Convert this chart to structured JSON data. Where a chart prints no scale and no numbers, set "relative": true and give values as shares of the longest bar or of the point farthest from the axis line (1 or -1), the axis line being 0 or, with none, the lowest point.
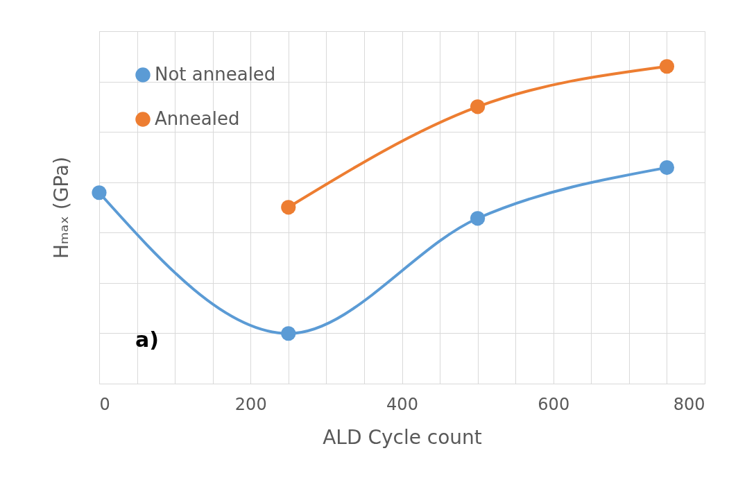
{
  "chart_data": {
    "type": "line",
    "relative": true,
    "xlabel": "ALD Cycle count",
    "ylabel": "Hₘₐₓ (GPa)",
    "xlim": [
      0,
      800
    ],
    "xticks": [
      0,
      {
        "value": 50,
        "label": null
      },
      {
        "value": 100,
        "label": null
      },
      {
        "value": 150,
        "label": null
      },
      200,
      {
        "value": 250,
        "label": null
      },
      {
        "value": 300,
        "label": null
      },
      {
        "value": 350,
        "label": null
      },
      400,
      {
        "value": 450,
        "label": null
      },
      {
        "value": 500,
        "label": null
      },
      {
        "value": 550,
        "label": null
      },
      600,
      {
        "value": 650,
        "label": null
      },
      {
        "value": 700,
        "label": null
      },
      {
        "value": 750,
        "label": null
      },
      800
    ],
    "grid": true,
    "legend": "top left",
    "marker": "circle",
    "line_style": "solid",
    "annotations": [
      "a)"
    ],
    "series": [
      {
        "name": "Not annealed",
        "color": "#5b9bd5",
        "x": [
          0,
          250,
          500,
          750
        ],
        "values": [
          0.602,
          0.158,
          0.521,
          0.681
        ]
      },
      {
        "name": "Annealed",
        "color": "#ed7d31",
        "x": [
          250,
          500,
          750
        ],
        "values": [
          0.556,
          0.873,
          1
        ]
      }
    ]
  }
}
